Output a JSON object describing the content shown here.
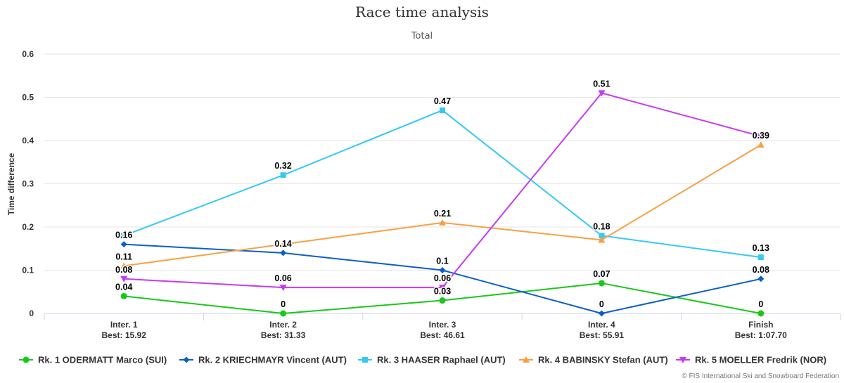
{
  "chart_data": {
    "type": "line",
    "title": "Race time analysis",
    "subtitle": "Total",
    "ylabel": "Time difference",
    "xlabel": "",
    "ylim": [
      0,
      0.6
    ],
    "yticks": [
      "0",
      "0.1",
      "0.2",
      "0.3",
      "0.4",
      "0.5",
      "0.6"
    ],
    "categories": [
      {
        "name": "Inter. 1",
        "best": "Best: 15.92"
      },
      {
        "name": "Inter. 2",
        "best": "Best: 31.33"
      },
      {
        "name": "Inter. 3",
        "best": "Best: 46.61"
      },
      {
        "name": "Inter. 4",
        "best": "Best: 55.91"
      },
      {
        "name": "Finish",
        "best": "Best: 1:07.70"
      }
    ],
    "legend_position": "bottom",
    "grid": true,
    "series": [
      {
        "name": "Rk. 1 ODERMATT Marco (SUI)",
        "color": "#19c819",
        "marker": "circle",
        "values": [
          0.04,
          0,
          0.03,
          0.07,
          0
        ],
        "labels": [
          "0.04",
          "0",
          "0.03",
          "0.07",
          "0"
        ]
      },
      {
        "name": "Rk. 2 KRIECHMAYR Vincent (AUT)",
        "color": "#0b5ec9",
        "marker": "diamond",
        "values": [
          0.16,
          0.14,
          0.1,
          0,
          0.08
        ],
        "labels": [
          "0.16",
          "0.14",
          "0.1",
          "0",
          "0.08"
        ]
      },
      {
        "name": "Rk. 3 HAASER Raphael (AUT)",
        "color": "#36c8f4",
        "marker": "square",
        "values": [
          0.18,
          0.32,
          0.47,
          0.18,
          0.13
        ],
        "labels": [
          "",
          "0.32",
          "0.47",
          "0.18",
          "0.13"
        ]
      },
      {
        "name": "Rk. 4 BABINSKY Stefan (AUT)",
        "color": "#f7a044",
        "marker": "triangle",
        "values": [
          0.11,
          0.16,
          0.21,
          0.17,
          0.39
        ],
        "labels": [
          "0.11",
          "",
          "0.21",
          "",
          "0.39"
        ]
      },
      {
        "name": "Rk. 5 MOELLER Fredrik (NOR)",
        "color": "#c53af3",
        "marker": "triangle-down",
        "values": [
          0.08,
          0.06,
          0.06,
          0.51,
          0.41
        ],
        "labels": [
          "0.08",
          "0.06",
          "0.06",
          "0.51",
          ""
        ]
      }
    ]
  },
  "credits": "© FIS International Ski and Snowboard Federation"
}
